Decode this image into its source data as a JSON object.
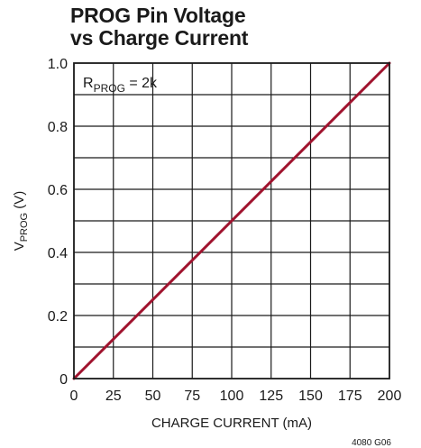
{
  "chart_data": {
    "type": "line",
    "title_lines": [
      "PROG Pin Voltage",
      "vs Charge Current"
    ],
    "xlabel": "CHARGE CURRENT (mA)",
    "ylabel": {
      "main": "V",
      "sub": "PROG",
      "suffix": " (V)"
    },
    "xlim": [
      0,
      200
    ],
    "ylim": [
      0,
      1.0
    ],
    "x_ticks": [
      0,
      25,
      50,
      75,
      100,
      125,
      150,
      175,
      200
    ],
    "x_tick_labels": [
      "0",
      "25",
      "50",
      "75",
      "100",
      "125",
      "150",
      "175",
      "200"
    ],
    "y_ticks": [
      0,
      0.2,
      0.4,
      0.6,
      0.8,
      1.0
    ],
    "y_tick_labels": [
      "0",
      "0.2",
      "0.4",
      "0.6",
      "0.8",
      "1.0"
    ],
    "grid": true,
    "series": [
      {
        "x": [
          0,
          200
        ],
        "y": [
          0,
          1.0
        ]
      }
    ],
    "annotation": {
      "main": "R",
      "sub": "PROG",
      "suffix": " = 2k"
    },
    "figure_id": "4080 G06",
    "colors": {
      "line": "#a0132e",
      "grid": "#1a1a1a",
      "text": "#1a1a1a"
    }
  }
}
